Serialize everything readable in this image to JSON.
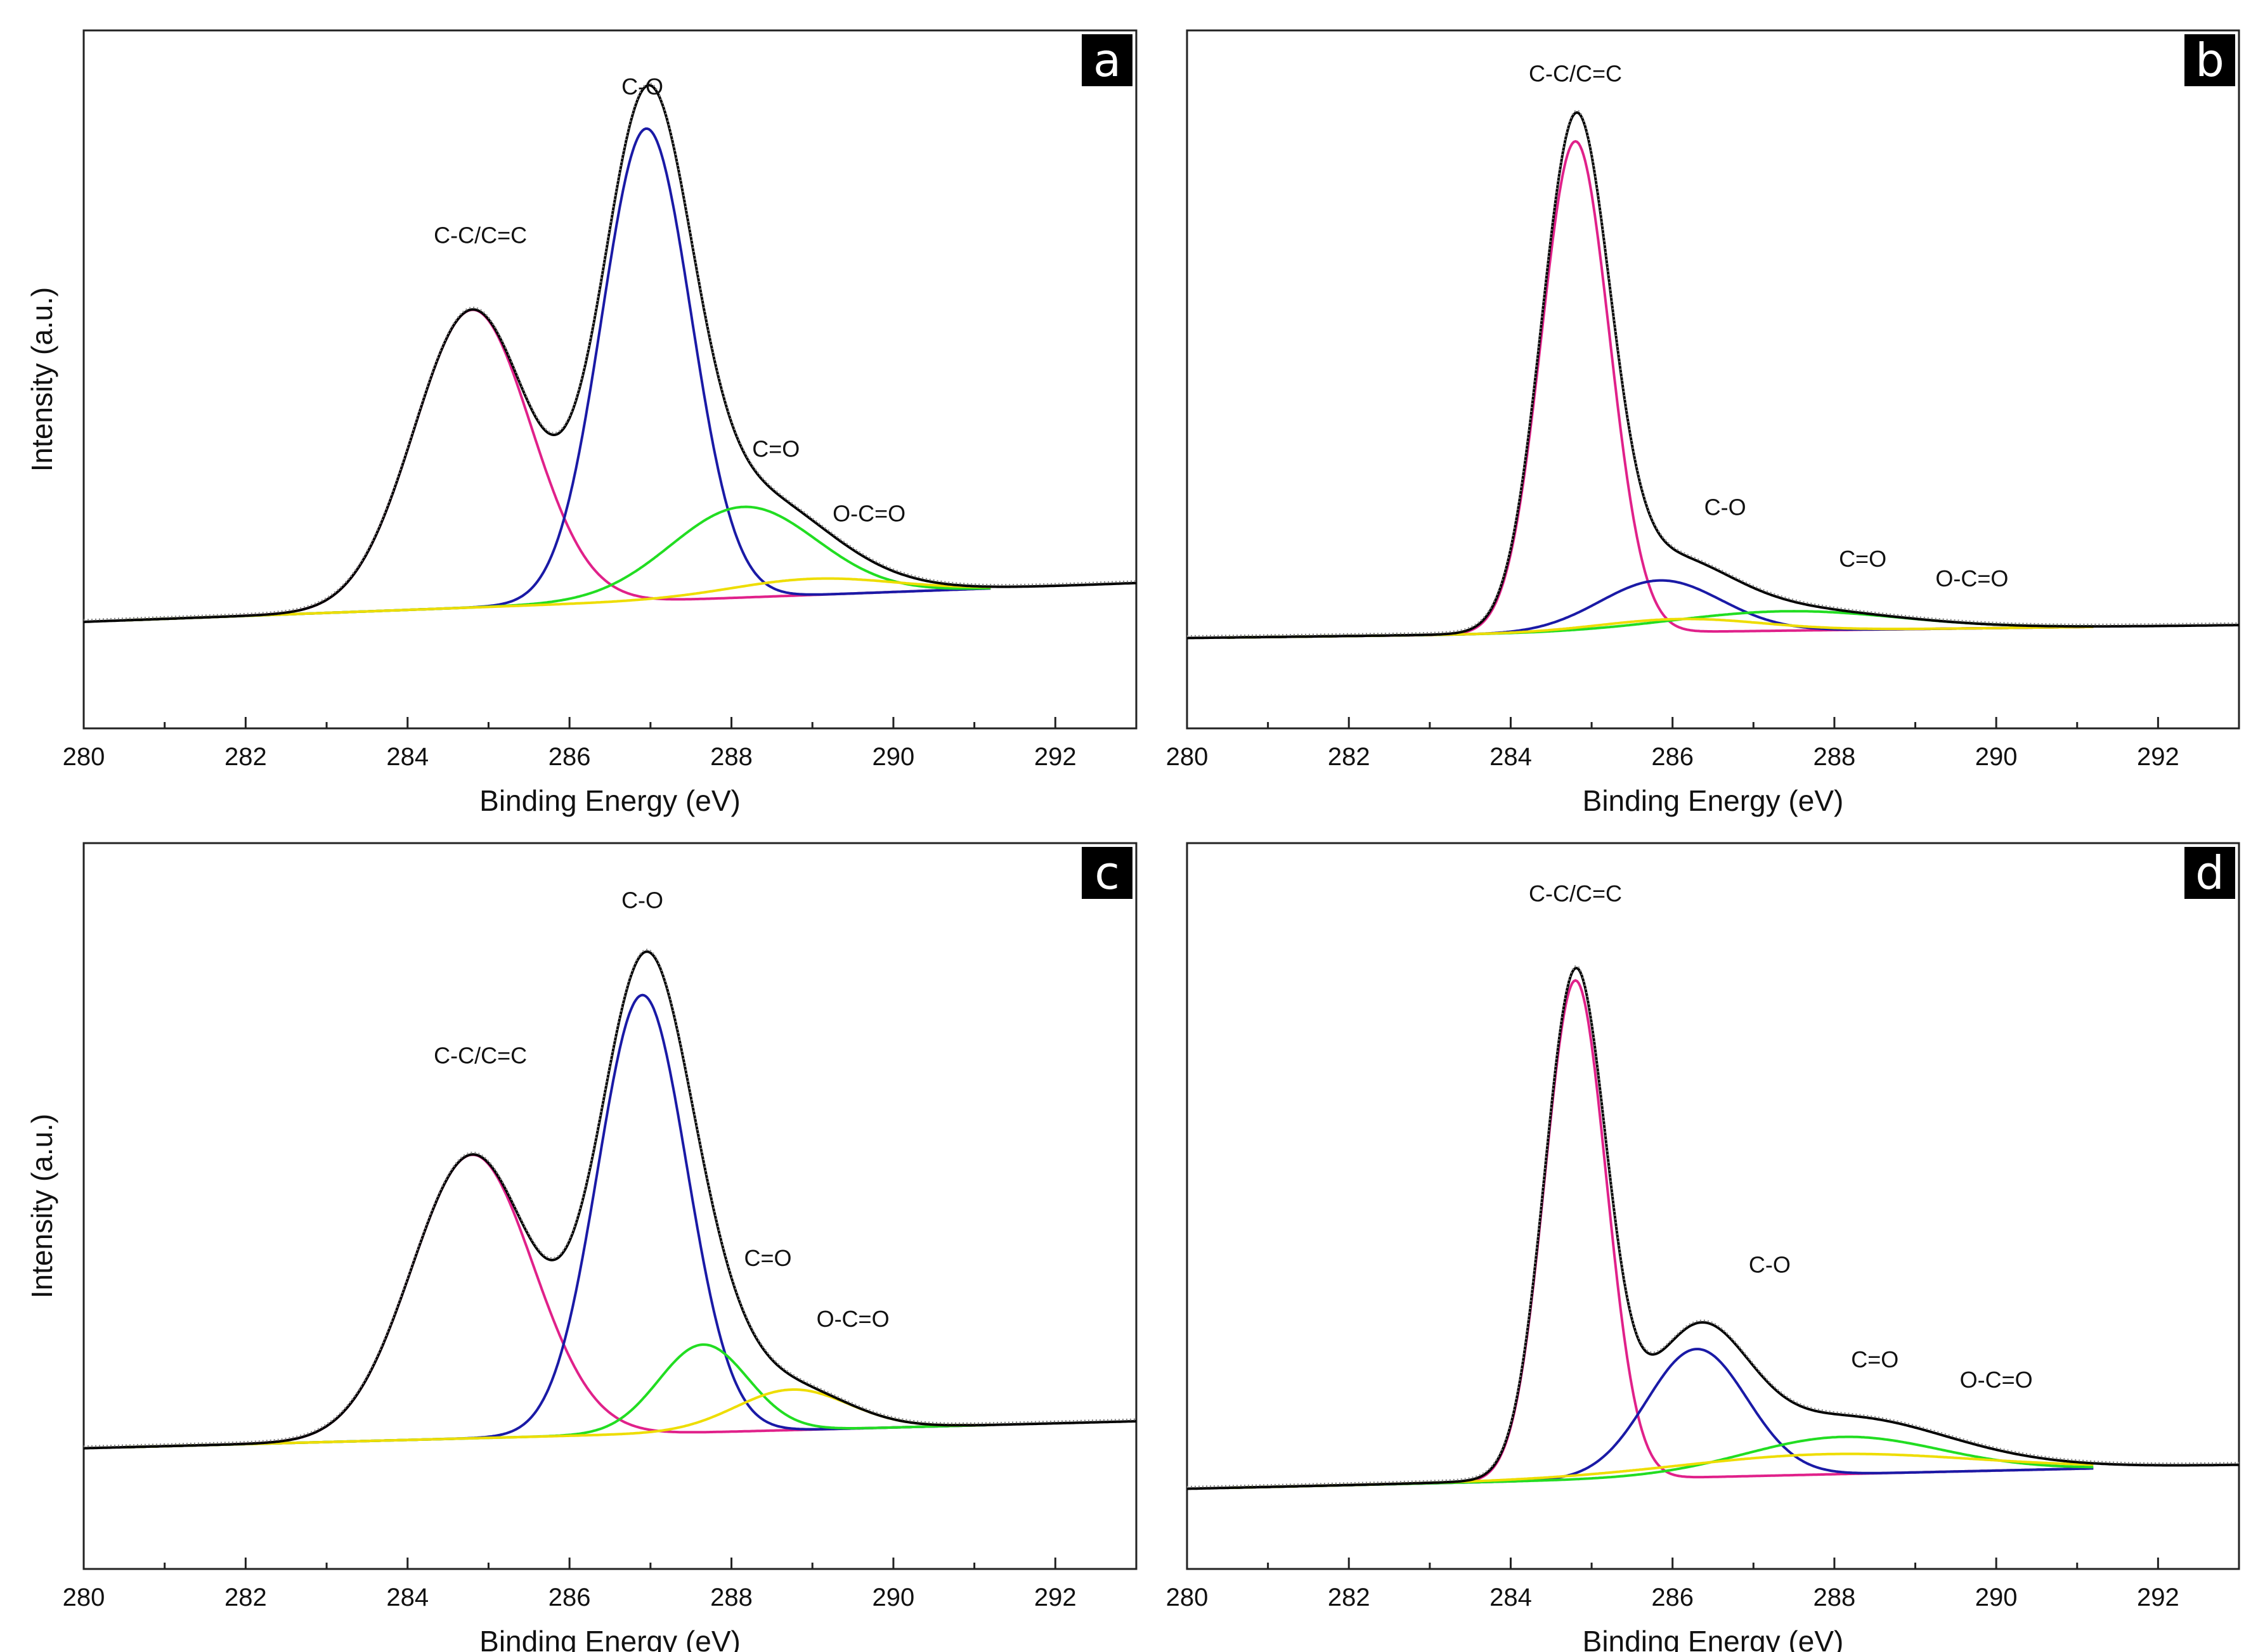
{
  "chart_data": [
    {
      "type": "line",
      "panel_label": "a",
      "xlabel": "Binding Energy (eV)",
      "ylabel": "Intensity (a.u.)",
      "xlim": [
        280,
        293
      ],
      "ylim": [
        0,
        1.0
      ],
      "x_ticks": [
        280,
        282,
        284,
        286,
        288,
        290,
        292
      ],
      "baseline": {
        "start": 0.145,
        "end": 0.205
      },
      "series": [
        {
          "name": "C-C/C=C",
          "color": "#e0218a",
          "center": 284.8,
          "height": 0.46,
          "width": 0.72
        },
        {
          "name": "C-O",
          "color": "#1a1aa6",
          "center": 286.95,
          "height": 0.73,
          "width": 0.55
        },
        {
          "name": "C=O",
          "color": "#22dd22",
          "center": 288.15,
          "height": 0.14,
          "width": 0.9
        },
        {
          "name": "O-C=O",
          "color": "#eedd00",
          "center": 289.0,
          "height": 0.025,
          "width": 1.0
        }
      ],
      "annotations": [
        {
          "text": "C-C/C=C",
          "x": 284.9,
          "y": 0.73
        },
        {
          "text": "C-O",
          "x": 286.9,
          "y": 0.96
        },
        {
          "text": "C=O",
          "x": 288.55,
          "y": 0.4
        },
        {
          "text": "O-C=O",
          "x": 289.7,
          "y": 0.3
        }
      ]
    },
    {
      "type": "line",
      "panel_label": "b",
      "xlabel": "Binding Energy (eV)",
      "ylabel": "",
      "xlim": [
        280,
        293
      ],
      "ylim": [
        0,
        1.0
      ],
      "x_ticks": [
        280,
        282,
        284,
        286,
        288,
        290,
        292
      ],
      "baseline": {
        "start": 0.12,
        "end": 0.14
      },
      "series": [
        {
          "name": "C-C/C=C",
          "color": "#e0218a",
          "center": 284.8,
          "height": 0.76,
          "width": 0.42
        },
        {
          "name": "C-O",
          "color": "#1a1aa6",
          "center": 285.85,
          "height": 0.08,
          "width": 0.75
        },
        {
          "name": "C=O",
          "color": "#22dd22",
          "center": 287.4,
          "height": 0.03,
          "width": 1.4
        },
        {
          "name": "O-C=O",
          "color": "#eedd00",
          "center": 286.1,
          "height": 0.02,
          "width": 1.0
        }
      ],
      "annotations": [
        {
          "text": "C-C/C=C",
          "x": 284.8,
          "y": 0.98
        },
        {
          "text": "C-O",
          "x": 286.65,
          "y": 0.31
        },
        {
          "text": "C=O",
          "x": 288.35,
          "y": 0.23
        },
        {
          "text": "O-C=O",
          "x": 289.7,
          "y": 0.2
        }
      ]
    },
    {
      "type": "line",
      "panel_label": "c",
      "xlabel": "Binding Energy (eV)",
      "ylabel": "Intensity (a.u.)",
      "xlim": [
        280,
        293
      ],
      "ylim": [
        0,
        1.0
      ],
      "x_ticks": [
        280,
        282,
        284,
        286,
        288,
        290,
        292
      ],
      "baseline": {
        "start": 0.16,
        "end": 0.2
      },
      "series": [
        {
          "name": "C-C/C=C",
          "color": "#e0218a",
          "center": 284.8,
          "height": 0.42,
          "width": 0.75
        },
        {
          "name": "C-O",
          "color": "#1a1aa6",
          "center": 286.9,
          "height": 0.65,
          "width": 0.55
        },
        {
          "name": "C=O",
          "color": "#22dd22",
          "center": 287.65,
          "height": 0.13,
          "width": 0.55
        },
        {
          "name": "O-C=O",
          "color": "#eedd00",
          "center": 288.75,
          "height": 0.06,
          "width": 0.7
        }
      ],
      "annotations": [
        {
          "text": "C-C/C=C",
          "x": 284.9,
          "y": 0.73
        },
        {
          "text": "C-O",
          "x": 286.9,
          "y": 0.96
        },
        {
          "text": "C=O",
          "x": 288.45,
          "y": 0.43
        },
        {
          "text": "O-C=O",
          "x": 289.5,
          "y": 0.34
        }
      ]
    },
    {
      "type": "line",
      "panel_label": "d",
      "xlabel": "Binding Energy (eV)",
      "ylabel": "",
      "xlim": [
        280,
        293
      ],
      "ylim": [
        0,
        1.0
      ],
      "x_ticks": [
        280,
        282,
        284,
        286,
        288,
        290,
        292
      ],
      "baseline": {
        "start": 0.1,
        "end": 0.135
      },
      "series": [
        {
          "name": "C-C/C=C",
          "color": "#e0218a",
          "center": 284.8,
          "height": 0.74,
          "width": 0.38
        },
        {
          "name": "C-O",
          "color": "#1a1aa6",
          "center": 286.3,
          "height": 0.19,
          "width": 0.62
        },
        {
          "name": "C=O",
          "color": "#22dd22",
          "center": 288.1,
          "height": 0.055,
          "width": 1.2
        },
        {
          "name": "O-C=O",
          "color": "#eedd00",
          "center": 287.9,
          "height": 0.03,
          "width": 1.8
        }
      ],
      "annotations": [
        {
          "text": "C-C/C=C",
          "x": 284.8,
          "y": 0.97
        },
        {
          "text": "C-O",
          "x": 287.2,
          "y": 0.42
        },
        {
          "text": "C=O",
          "x": 288.5,
          "y": 0.28
        },
        {
          "text": "O-C=O",
          "x": 290.0,
          "y": 0.25
        }
      ]
    }
  ]
}
